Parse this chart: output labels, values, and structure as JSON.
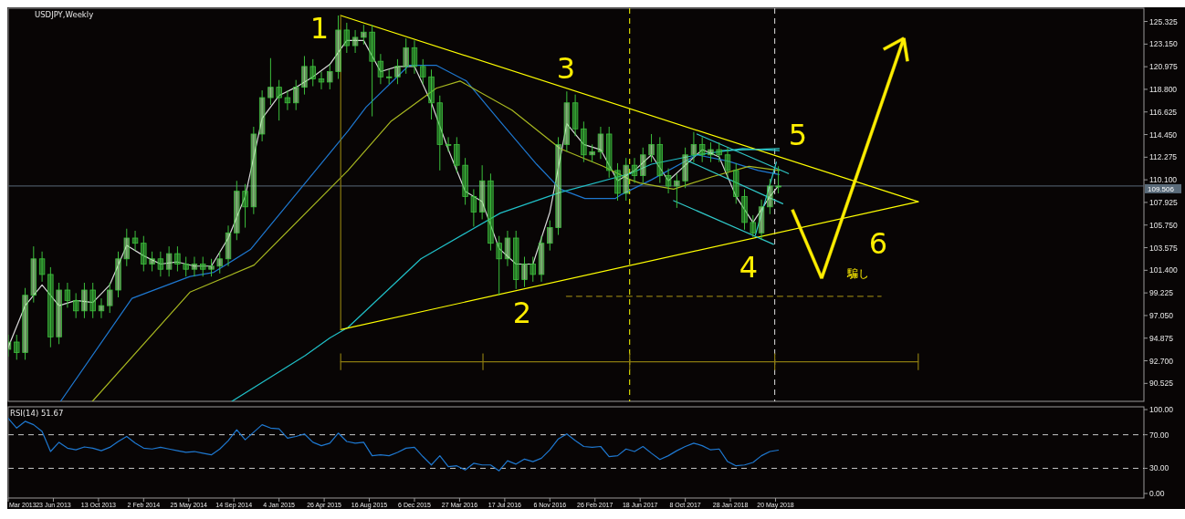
{
  "chart_data": [
    {
      "type": "candlestick",
      "title": "USDJPY,Weekly",
      "color": "#3cbf3c",
      "x": [
        "2013-03-03",
        "2013-03-24",
        "2013-04-14",
        "2013-05-05",
        "2013-05-26",
        "2013-06-16",
        "2013-07-07",
        "2013-07-28",
        "2013-08-18",
        "2013-09-08",
        "2013-09-29",
        "2013-10-20",
        "2013-11-10",
        "2013-12-01",
        "2013-12-22",
        "2014-01-12",
        "2014-02-02",
        "2014-02-23",
        "2014-03-16",
        "2014-04-06",
        "2014-04-27",
        "2014-05-18",
        "2014-06-08",
        "2014-06-29",
        "2014-07-20",
        "2014-08-10",
        "2014-08-31",
        "2014-09-21",
        "2014-10-12",
        "2014-11-02",
        "2014-11-23",
        "2014-12-14",
        "2015-01-04",
        "2015-01-25",
        "2015-02-15",
        "2015-03-08",
        "2015-03-29",
        "2015-04-19",
        "2015-05-10",
        "2015-05-31",
        "2015-06-21",
        "2015-07-12",
        "2015-08-02",
        "2015-08-23",
        "2015-09-13",
        "2015-10-04",
        "2015-10-25",
        "2015-11-15",
        "2015-12-06",
        "2015-12-27",
        "2016-01-17",
        "2016-02-07",
        "2016-02-28",
        "2016-03-20",
        "2016-04-10",
        "2016-05-01",
        "2016-05-22",
        "2016-06-12",
        "2016-07-03",
        "2016-07-24",
        "2016-08-14",
        "2016-09-04",
        "2016-09-25",
        "2016-10-16",
        "2016-11-06",
        "2016-11-27",
        "2016-12-18",
        "2017-01-08",
        "2017-01-29",
        "2017-02-19",
        "2017-03-12",
        "2017-04-02",
        "2017-04-23",
        "2017-05-14",
        "2017-06-04",
        "2017-06-25",
        "2017-07-16",
        "2017-08-06",
        "2017-08-27",
        "2017-09-17",
        "2017-10-08",
        "2017-10-29",
        "2017-11-19",
        "2017-12-10",
        "2017-12-31",
        "2018-01-21",
        "2018-02-11",
        "2018-03-04",
        "2018-03-25",
        "2018-04-15",
        "2018-05-06",
        "2018-05-27"
      ],
      "ohlc": [
        [
          93.8,
          95.2,
          93.1,
          94.5
        ],
        [
          94.5,
          95.2,
          92.8,
          93.5
        ],
        [
          93.5,
          99.7,
          92.8,
          99.0
        ],
        [
          99.0,
          103.7,
          98.3,
          102.5
        ],
        [
          102.5,
          103.2,
          100.3,
          101.0
        ],
        [
          101.0,
          101.7,
          94.0,
          95.0
        ],
        [
          95.0,
          100.2,
          94.3,
          99.5
        ],
        [
          99.5,
          100.2,
          97.8,
          98.5
        ],
        [
          98.5,
          99.2,
          96.8,
          97.5
        ],
        [
          97.5,
          100.2,
          96.8,
          99.5
        ],
        [
          99.5,
          100.2,
          96.8,
          97.5
        ],
        [
          97.5,
          98.7,
          96.8,
          98.0
        ],
        [
          98.0,
          100.2,
          97.3,
          99.5
        ],
        [
          99.5,
          103.2,
          98.8,
          102.5
        ],
        [
          102.5,
          105.4,
          101.8,
          104.5
        ],
        [
          104.5,
          105.2,
          103.3,
          104.0
        ],
        [
          104.0,
          104.7,
          101.3,
          102.0
        ],
        [
          102.0,
          103.2,
          101.3,
          102.5
        ],
        [
          102.5,
          103.2,
          100.8,
          101.5
        ],
        [
          101.5,
          103.7,
          100.8,
          103.0
        ],
        [
          103.0,
          103.7,
          101.3,
          102.0
        ],
        [
          102.0,
          102.7,
          100.8,
          101.5
        ],
        [
          101.5,
          102.7,
          100.8,
          102.0
        ],
        [
          102.0,
          102.7,
          100.8,
          101.5
        ],
        [
          101.5,
          102.5,
          100.8,
          101.8
        ],
        [
          101.8,
          103.2,
          101.1,
          102.5
        ],
        [
          102.5,
          105.7,
          101.8,
          105.0
        ],
        [
          105.0,
          110.0,
          104.3,
          109.0
        ],
        [
          109.0,
          109.7,
          105.5,
          107.5
        ],
        [
          107.5,
          115.2,
          106.8,
          114.5
        ],
        [
          114.5,
          118.7,
          113.8,
          118.0
        ],
        [
          118.0,
          121.8,
          117.3,
          119.0
        ],
        [
          119.0,
          119.7,
          115.8,
          118.0
        ],
        [
          118.0,
          118.7,
          116.8,
          117.5
        ],
        [
          117.5,
          119.7,
          116.8,
          119.0
        ],
        [
          119.0,
          122.0,
          118.3,
          121.0
        ],
        [
          121.0,
          121.7,
          119.1,
          119.8
        ],
        [
          119.8,
          120.5,
          118.8,
          119.5
        ],
        [
          119.5,
          121.2,
          118.8,
          120.5
        ],
        [
          120.5,
          125.9,
          119.8,
          124.5
        ],
        [
          124.5,
          125.2,
          122.3,
          123.0
        ],
        [
          123.0,
          124.5,
          122.3,
          123.8
        ],
        [
          123.8,
          125.0,
          123.1,
          124.3
        ],
        [
          124.3,
          125.0,
          116.2,
          121.5
        ],
        [
          121.5,
          122.2,
          119.3,
          120.0
        ],
        [
          120.0,
          120.7,
          119.3,
          120.0
        ],
        [
          120.0,
          121.7,
          119.3,
          121.0
        ],
        [
          121.0,
          123.7,
          120.3,
          122.8
        ],
        [
          122.8,
          123.5,
          120.3,
          121.0
        ],
        [
          121.0,
          121.7,
          119.3,
          120.0
        ],
        [
          120.0,
          120.7,
          115.9,
          117.5
        ],
        [
          117.5,
          118.2,
          111.0,
          113.5
        ],
        [
          113.5,
          114.2,
          112.8,
          113.5
        ],
        [
          113.5,
          114.2,
          110.8,
          111.5
        ],
        [
          111.5,
          112.2,
          107.7,
          108.5
        ],
        [
          108.5,
          109.2,
          105.6,
          107.0
        ],
        [
          107.0,
          111.5,
          106.3,
          110.0
        ],
        [
          110.0,
          110.7,
          103.3,
          104.0
        ],
        [
          104.0,
          104.7,
          99.0,
          102.5
        ],
        [
          102.5,
          105.2,
          101.8,
          104.5
        ],
        [
          104.5,
          105.2,
          99.6,
          100.5
        ],
        [
          100.5,
          102.7,
          99.8,
          102.0
        ],
        [
          102.0,
          102.7,
          100.3,
          101.0
        ],
        [
          101.0,
          104.7,
          100.3,
          104.0
        ],
        [
          104.0,
          106.2,
          103.3,
          105.5
        ],
        [
          105.5,
          114.2,
          104.8,
          113.5
        ],
        [
          113.5,
          118.6,
          112.8,
          117.5
        ],
        [
          117.5,
          118.3,
          114.3,
          115.0
        ],
        [
          115.0,
          115.7,
          111.8,
          112.5
        ],
        [
          112.5,
          113.5,
          111.8,
          112.8
        ],
        [
          112.8,
          115.2,
          112.1,
          114.5
        ],
        [
          114.5,
          115.2,
          110.3,
          111.0
        ],
        [
          111.0,
          111.7,
          108.1,
          108.8
        ],
        [
          108.8,
          112.2,
          108.1,
          111.5
        ],
        [
          111.5,
          112.2,
          109.8,
          110.5
        ],
        [
          110.5,
          113.2,
          109.8,
          112.5
        ],
        [
          112.5,
          114.5,
          111.8,
          113.5
        ],
        [
          113.5,
          114.2,
          109.8,
          110.5
        ],
        [
          110.5,
          111.2,
          108.8,
          109.5
        ],
        [
          109.5,
          110.7,
          107.4,
          110.0
        ],
        [
          110.0,
          113.2,
          109.3,
          112.5
        ],
        [
          112.5,
          114.7,
          111.8,
          113.5
        ],
        [
          113.5,
          114.2,
          111.8,
          112.5
        ],
        [
          112.5,
          113.7,
          111.8,
          113.0
        ],
        [
          113.0,
          113.7,
          111.8,
          112.5
        ],
        [
          112.5,
          113.2,
          110.3,
          111.0
        ],
        [
          111.0,
          111.7,
          107.8,
          108.5
        ],
        [
          108.5,
          109.2,
          105.3,
          106.0
        ],
        [
          106.0,
          106.7,
          104.6,
          105.0
        ],
        [
          105.0,
          108.2,
          104.3,
          107.5
        ],
        [
          107.5,
          110.2,
          106.8,
          109.5
        ],
        [
          109.5,
          111.4,
          108.8,
          109.5
        ]
      ],
      "xlim": [
        "2013-03-03",
        "2020-11-19"
      ],
      "ylim": [
        88.8,
        126.6
      ],
      "yticks": [
        {
          "value": 125.325,
          "label": "125.325"
        },
        {
          "value": 123.15,
          "label": "123.150"
        },
        {
          "value": 120.975,
          "label": "120.975"
        },
        {
          "value": 118.8,
          "label": "118.800"
        },
        {
          "value": 116.625,
          "label": "116.625"
        },
        {
          "value": 114.45,
          "label": "114.450"
        },
        {
          "value": 112.275,
          "label": "112.275"
        },
        {
          "value": 110.1,
          "label": "110.100"
        },
        {
          "value": 107.925,
          "label": "107.925"
        },
        {
          "value": 105.75,
          "label": "105.750"
        },
        {
          "value": 103.575,
          "label": "103.575"
        },
        {
          "value": 101.4,
          "label": "101.400"
        },
        {
          "value": 99.225,
          "label": "99.225"
        },
        {
          "value": 97.05,
          "label": "97.050"
        },
        {
          "value": 94.875,
          "label": "94.875"
        },
        {
          "value": 92.7,
          "label": "92.700"
        },
        {
          "value": 90.525,
          "label": "90.525"
        }
      ],
      "tick_labels": "y",
      "series": [
        {
          "type": "line",
          "color": "#d8d8d8",
          "x": [
            "2013-03-03",
            "2013-04-14",
            "2013-05-26",
            "2013-07-07",
            "2013-08-18",
            "2013-09-29",
            "2013-11-10",
            "2013-12-22",
            "2014-02-02",
            "2014-03-16",
            "2014-04-27",
            "2014-06-08",
            "2014-07-20",
            "2014-08-31",
            "2014-10-12",
            "2014-11-23",
            "2015-01-04",
            "2015-02-15",
            "2015-03-29",
            "2015-05-10",
            "2015-06-21",
            "2015-08-02",
            "2015-09-13",
            "2015-10-25",
            "2015-12-06",
            "2016-01-17",
            "2016-02-28",
            "2016-04-10",
            "2016-05-22",
            "2016-07-03",
            "2016-08-14",
            "2016-09-25",
            "2016-11-06",
            "2016-12-18",
            "2017-01-29",
            "2017-03-12",
            "2017-04-23",
            "2017-06-04",
            "2017-07-16",
            "2017-08-27",
            "2017-10-08",
            "2017-11-19",
            "2017-12-31",
            "2018-02-11",
            "2018-03-25",
            "2018-05-06",
            "2018-05-27"
          ],
          "values": [
            94.0,
            98.0,
            100.0,
            98.0,
            98.5,
            98.3,
            100.0,
            103.8,
            102.8,
            102.0,
            102.2,
            101.8,
            101.8,
            104.5,
            108.5,
            116.0,
            118.2,
            119.0,
            120.0,
            121.2,
            123.5,
            123.5,
            120.5,
            121.0,
            121.0,
            117.5,
            113.0,
            109.0,
            108.0,
            103.5,
            102.0,
            102.0,
            107.0,
            115.5,
            113.5,
            113.0,
            110.0,
            111.0,
            112.5,
            110.0,
            111.5,
            113.0,
            112.3,
            108.5,
            106.0,
            108.5,
            109.5
          ]
        },
        {
          "type": "line",
          "color": "#1e78d0",
          "x": [
            "2013-07-11",
            "2014-01-04",
            "2014-05-28",
            "2014-07-26",
            "2014-10-25",
            "2015-03-10",
            "2015-06-24",
            "2015-08-08",
            "2015-11-22",
            "2016-01-30",
            "2016-04-13",
            "2016-07-06",
            "2016-10-04",
            "2016-12-02",
            "2017-02-01",
            "2017-04-17",
            "2017-05-03",
            "2017-07-16",
            "2017-11-06",
            "2018-01-22",
            "2018-04-07",
            "2018-05-29"
          ],
          "values": [
            88.8,
            98.7,
            100.8,
            101.2,
            103.4,
            109.8,
            114.8,
            117.1,
            121.1,
            121.1,
            119.6,
            115.7,
            111.6,
            109.2,
            108.3,
            108.3,
            108.7,
            110.1,
            112.5,
            111.9,
            111.0,
            110.6
          ]
        },
        {
          "type": "line",
          "color": "#a8b820",
          "x": [
            "2013-09-28",
            "2014-05-28",
            "2014-11-03",
            "2015-06-24",
            "2015-10-08",
            "2016-01-29",
            "2016-03-28",
            "2016-08-04",
            "2016-12-02",
            "2017-03-18",
            "2017-05-25",
            "2017-06-17",
            "2017-09-09",
            "2017-12-14",
            "2018-03-15",
            "2018-05-29"
          ],
          "values": [
            88.8,
            99.3,
            101.9,
            111.0,
            115.7,
            118.9,
            119.6,
            116.8,
            113.1,
            111.4,
            110.1,
            109.8,
            109.2,
            110.4,
            111.4,
            111.0
          ]
        },
        {
          "type": "line",
          "color": "#20c0c8",
          "x": [
            "2014-09-09",
            "2015-03-10",
            "2015-05-10",
            "2015-06-24",
            "2015-12-22",
            "2016-07-06",
            "2016-12-02",
            "2017-05-25",
            "2017-07-16",
            "2017-11-06",
            "2018-02-27",
            "2018-05-29"
          ],
          "values": [
            88.8,
            93.2,
            94.9,
            95.9,
            102.5,
            106.9,
            108.9,
            110.7,
            111.6,
            112.5,
            113.1,
            112.9
          ]
        },
        {
          "type": "line",
          "color": "#ffff00",
          "x": [
            "2015-06-06",
            "2019-05-09"
          ],
          "values": [
            125.9,
            108.0
          ]
        },
        {
          "type": "line",
          "color": "#ffff00",
          "x": [
            "2015-06-06",
            "2019-05-09"
          ],
          "values": [
            95.7,
            108.0
          ]
        },
        {
          "type": "line",
          "color": "#8a7a10",
          "x": [
            "2015-06-06",
            "2015-06-06"
          ],
          "values": [
            95.7,
            125.9
          ]
        },
        {
          "type": "line",
          "color": "#8a7a10",
          "line_style": "dashed",
          "x": [
            "2016-12-17",
            "2019-02-06"
          ],
          "values": [
            98.9,
            98.9
          ]
        },
        {
          "type": "line",
          "color": "#8a7a10",
          "x": [
            "2015-06-06",
            "2016-05-24",
            "2017-05-23",
            "2018-05-18",
            "2019-05-09"
          ],
          "values": [
            92.6,
            92.6,
            92.6,
            92.6,
            92.6
          ],
          "errors": [
            0.8,
            0.8,
            0.8,
            0.8,
            0.8
          ]
        },
        {
          "type": "line",
          "color": "#30c8c8",
          "x": [
            "2017-11-06",
            "2018-06-21"
          ],
          "values": [
            114.5,
            110.7
          ]
        },
        {
          "type": "line",
          "color": "#30c8c8",
          "x": [
            "2017-10-16",
            "2018-06-07"
          ],
          "values": [
            111.9,
            107.8
          ]
        },
        {
          "type": "line",
          "color": "#30c8c8",
          "x": [
            "2017-09-09",
            "2018-05-15"
          ],
          "values": [
            108.1,
            103.9
          ]
        },
        {
          "type": "line",
          "color": "#30c8c8",
          "x": [
            "2018-01-06",
            "2018-05-29"
          ],
          "values": [
            112.9,
            113.1
          ]
        },
        {
          "type": "line",
          "color": "#30c8c8",
          "x": [
            "2018-03-31",
            "2018-05-22"
          ],
          "values": [
            104.8,
            111.8
          ]
        }
      ],
      "ref_lines": [
        {
          "axis": "y",
          "value": 109.506,
          "label": "109.506",
          "color": "#5a6b7a"
        },
        {
          "axis": "x",
          "value": "2017-05-23",
          "color": "#ffff00",
          "line_style": "dashed"
        },
        {
          "axis": "x",
          "value": "2018-05-18",
          "color": "#e0e0e0",
          "line_style": "dashed"
        }
      ],
      "annotations": [
        "1",
        "2",
        "3",
        "4",
        "5",
        "6",
        "騙し"
      ]
    },
    {
      "type": "line",
      "title": "RSI(14) 51.67",
      "x": [
        "2013-03-03",
        "2013-03-24",
        "2013-04-14",
        "2013-05-05",
        "2013-05-26",
        "2013-06-16",
        "2013-07-07",
        "2013-07-28",
        "2013-08-18",
        "2013-09-08",
        "2013-09-29",
        "2013-10-20",
        "2013-11-10",
        "2013-12-01",
        "2013-12-22",
        "2014-01-12",
        "2014-02-02",
        "2014-02-23",
        "2014-03-16",
        "2014-04-06",
        "2014-04-27",
        "2014-05-18",
        "2014-06-08",
        "2014-06-29",
        "2014-07-20",
        "2014-08-10",
        "2014-08-31",
        "2014-09-21",
        "2014-10-12",
        "2014-11-02",
        "2014-11-23",
        "2014-12-14",
        "2015-01-04",
        "2015-01-25",
        "2015-02-15",
        "2015-03-08",
        "2015-03-29",
        "2015-04-19",
        "2015-05-10",
        "2015-05-31",
        "2015-06-21",
        "2015-07-12",
        "2015-08-02",
        "2015-08-23",
        "2015-09-13",
        "2015-10-04",
        "2015-10-25",
        "2015-11-15",
        "2015-12-06",
        "2015-12-27",
        "2016-01-17",
        "2016-02-07",
        "2016-02-28",
        "2016-03-20",
        "2016-04-10",
        "2016-05-01",
        "2016-05-22",
        "2016-06-12",
        "2016-07-03",
        "2016-07-24",
        "2016-08-14",
        "2016-09-04",
        "2016-09-25",
        "2016-10-16",
        "2016-11-06",
        "2016-11-27",
        "2016-12-18",
        "2017-01-08",
        "2017-01-29",
        "2017-02-19",
        "2017-03-12",
        "2017-04-02",
        "2017-04-23",
        "2017-05-14",
        "2017-06-04",
        "2017-06-25",
        "2017-07-16",
        "2017-08-06",
        "2017-08-27",
        "2017-09-17",
        "2017-10-08",
        "2017-10-29",
        "2017-11-19",
        "2017-12-10",
        "2017-12-31",
        "2018-01-21",
        "2018-02-11",
        "2018-03-04",
        "2018-03-25",
        "2018-04-15",
        "2018-05-06",
        "2018-05-27"
      ],
      "series": [
        {
          "color": "#1e78d0",
          "values": [
            89.5,
            78,
            86,
            82,
            74,
            50,
            61,
            54,
            52,
            55.5,
            54,
            51,
            55,
            62,
            68,
            60,
            54,
            53,
            55,
            53,
            51,
            49,
            50,
            48,
            46,
            53,
            63,
            76,
            64,
            73,
            82,
            78,
            77,
            66,
            68,
            71,
            61,
            57,
            60,
            72,
            62,
            60,
            61,
            45,
            46,
            45,
            49,
            54,
            55,
            44,
            34,
            45,
            32,
            33,
            28,
            36,
            34,
            34,
            27,
            39,
            35,
            41,
            38,
            42,
            52,
            65,
            71,
            63,
            56,
            55,
            56,
            44,
            45,
            53,
            50,
            56,
            48,
            40.5,
            45,
            51,
            56,
            60,
            57,
            52,
            53,
            38,
            33,
            34,
            37,
            45,
            50,
            51.67
          ]
        }
      ],
      "xlim": [
        "2013-03-03",
        "2020-11-19"
      ],
      "ylim": [
        -5.4,
        103.3
      ],
      "yticks": [
        {
          "value": 100,
          "label": "100.00"
        },
        {
          "value": 70,
          "label": "70.00"
        },
        {
          "value": 30,
          "label": "30.00"
        },
        {
          "value": 0,
          "label": "0.00"
        }
      ],
      "xticks": [
        {
          "value": "2013-03-03",
          "label": "Mar 2013"
        },
        {
          "value": "2013-06-23",
          "label": "23 Jun 2013"
        },
        {
          "value": "2013-10-13",
          "label": "13 Oct 2013"
        },
        {
          "value": "2014-02-02",
          "label": "2 Feb 2014"
        },
        {
          "value": "2014-05-25",
          "label": "25 May 2014"
        },
        {
          "value": "2014-09-14",
          "label": "14 Sep 2014"
        },
        {
          "value": "2015-01-04",
          "label": "4 Jan 2015"
        },
        {
          "value": "2015-04-26",
          "label": "26 Apr 2015"
        },
        {
          "value": "2015-08-16",
          "label": "16 Aug 2015"
        },
        {
          "value": "2015-12-06",
          "label": "6 Dec 2015"
        },
        {
          "value": "2016-03-27",
          "label": "27 Mar 2016"
        },
        {
          "value": "2016-07-17",
          "label": "17 Jul 2016"
        },
        {
          "value": "2016-11-06",
          "label": "6 Nov 2016"
        },
        {
          "value": "2017-02-26",
          "label": "26 Feb 2017"
        },
        {
          "value": "2017-06-18",
          "label": "18 Jun 2017"
        },
        {
          "value": "2017-10-08",
          "label": "8 Oct 2017"
        },
        {
          "value": "2018-01-28",
          "label": "28 Jan 2018"
        },
        {
          "value": "2018-05-20",
          "label": "20 May 2018"
        }
      ],
      "ref_lines": [
        {
          "axis": "y",
          "value": 70,
          "color": "#c8c8c8",
          "line_style": "dashed"
        },
        {
          "axis": "y",
          "value": 30,
          "color": "#c8c8c8",
          "line_style": "dashed"
        }
      ]
    }
  ]
}
